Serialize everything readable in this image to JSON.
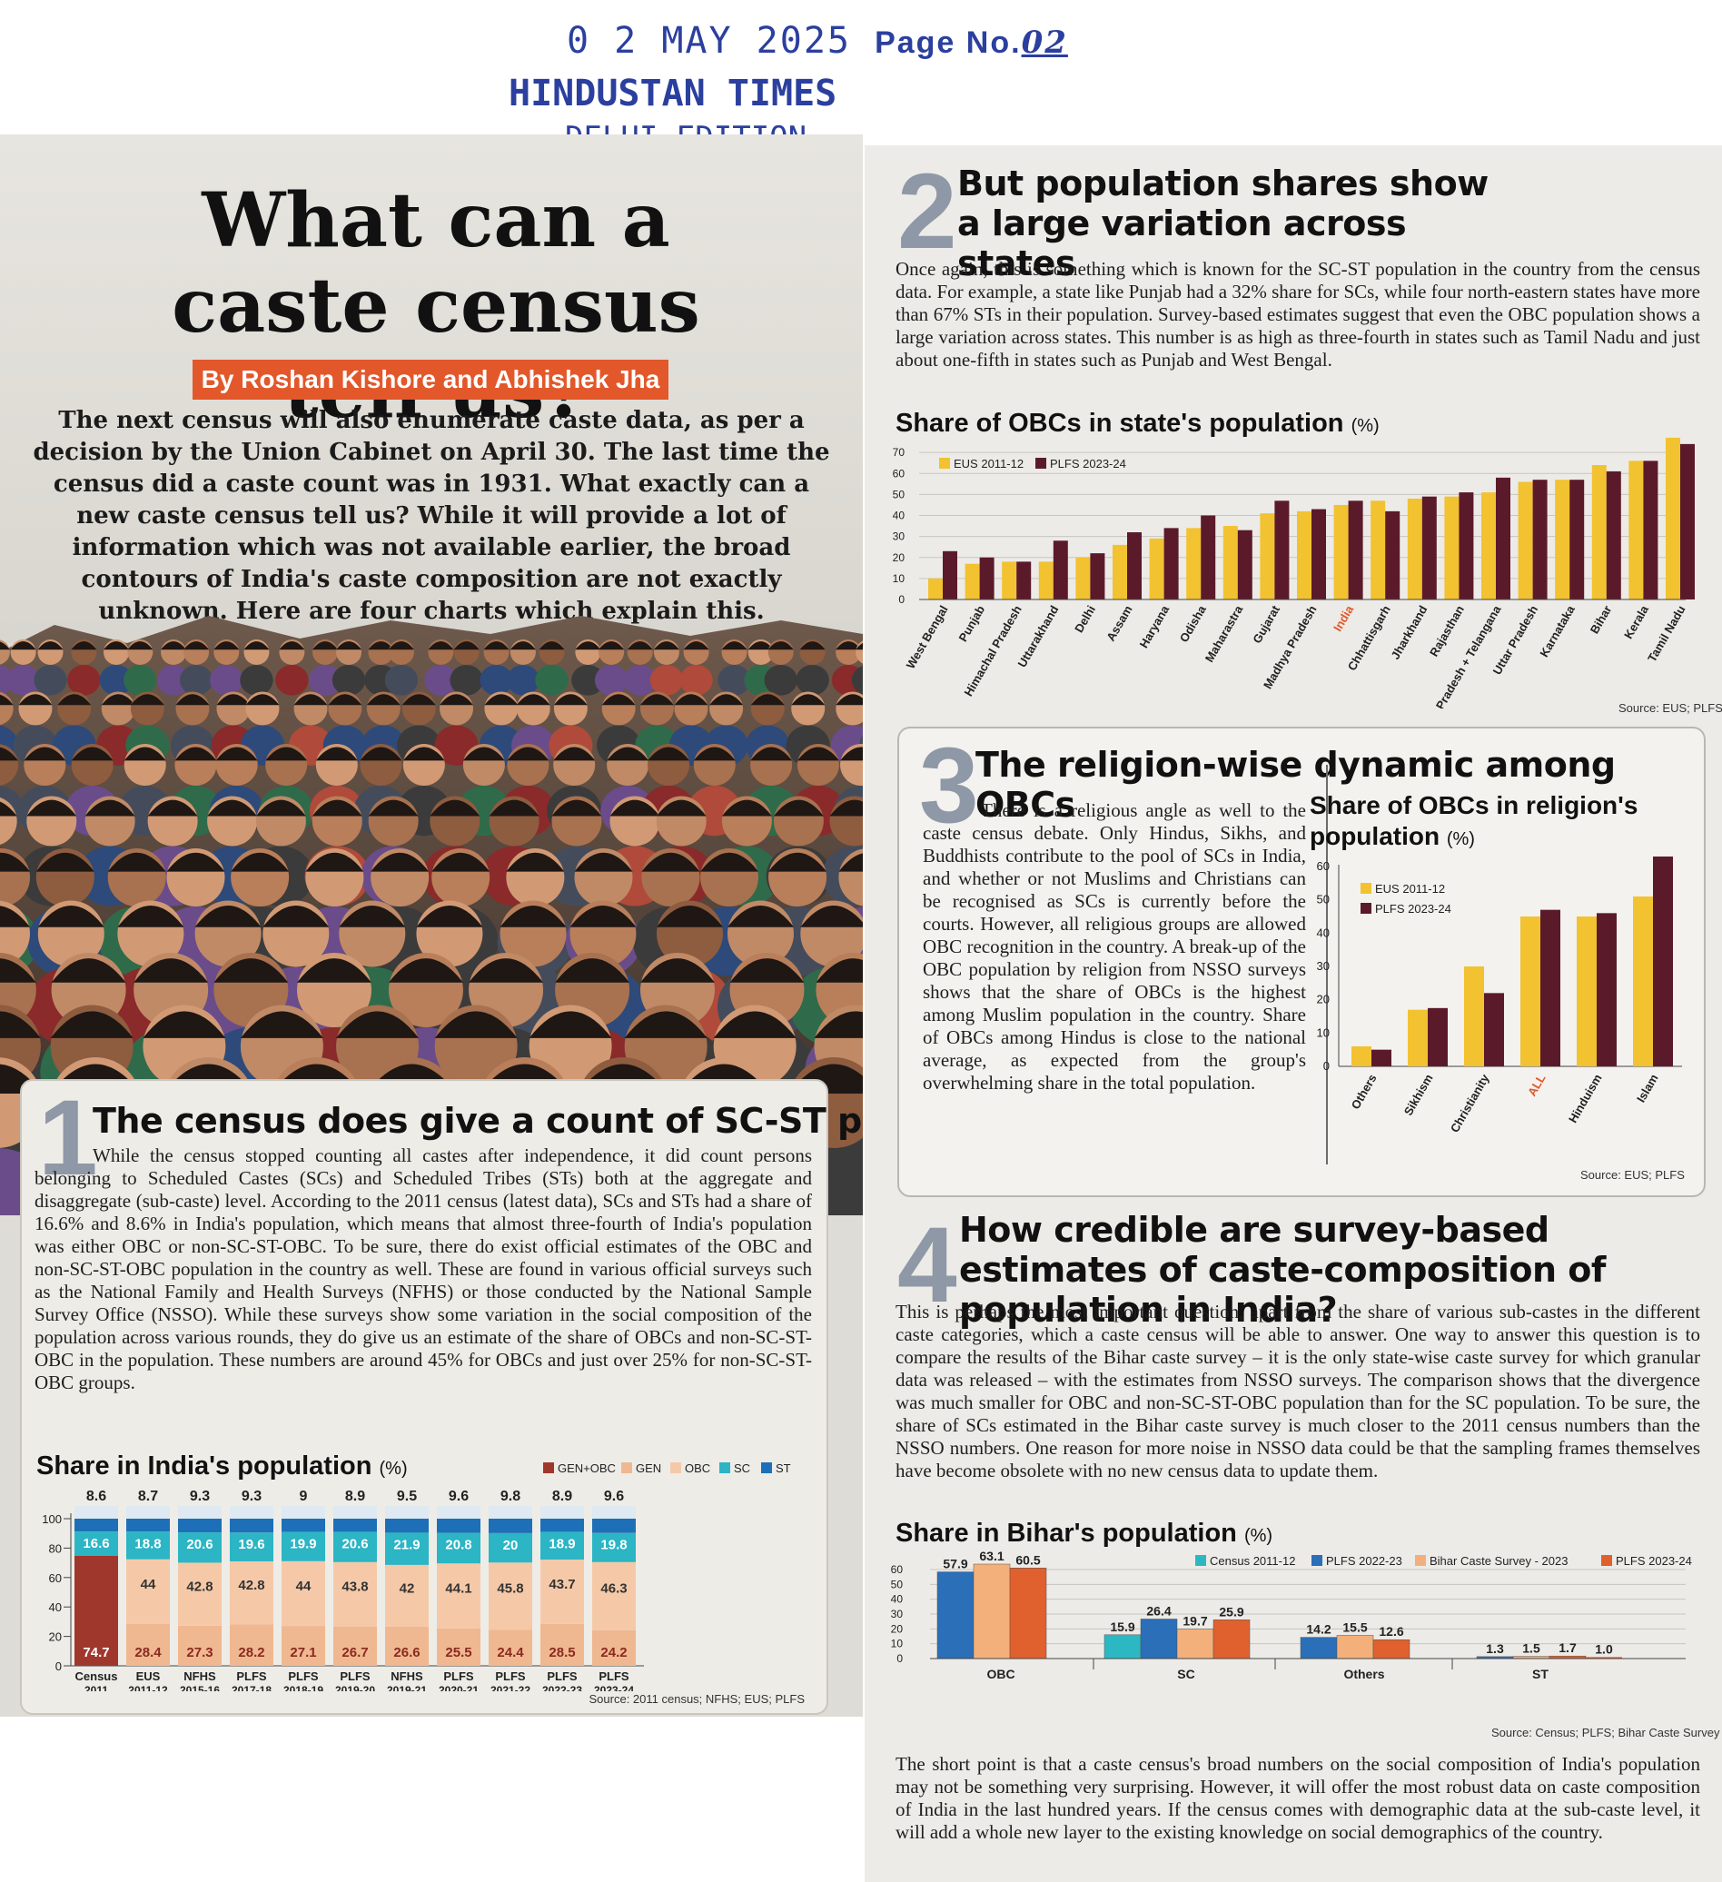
{
  "stamp": {
    "date": "0 2 MAY 2025",
    "page_label": "Page No.",
    "page_number": "02",
    "paper": "HINDUSTAN TIMES",
    "edition": "DELHI EDITION"
  },
  "article": {
    "headline": "What can a caste census tell us?",
    "byline": "By Roshan Kishore and Abhishek Jha",
    "intro": "The next census will also enumerate caste data, as per a decision by the Union Cabinet on April 30. The last time the census did a caste count was in 1931. What exactly can a new caste census tell us? While it will provide a lot of information which was not available earlier, the broad contours of India's caste composition are not exactly unknown. Here are four charts which explain this."
  },
  "sections": {
    "s1": {
      "number": "1",
      "title": "The census does give a count of SC-ST population",
      "body": "While the census stopped counting all castes after independence, it did count persons belonging to Scheduled Castes (SCs) and Scheduled Tribes (STs) both at the aggregate and disaggregate (sub-caste) level. According to the 2011 census (latest data), SCs and STs had a share of 16.6% and 8.6% in India's population, which means that almost three-fourth of India's population was either OBC or non-SC-ST-OBC. To be sure, there do exist official estimates of the OBC and non-SC-ST-OBC population in the country as well. These are found in various official surveys such as the National Family and Health Surveys (NFHS) or those conducted by the National Sample Survey Office (NSSO). While these surveys show some variation in the social composition of the population across various rounds, they do give us an estimate of the share of OBCs and non-SC-ST-OBC in the population. These numbers are around 45% for OBCs and just over 25% for non-SC-ST-OBC groups.",
      "chart_title": "Share in India's population",
      "chart_unit": "(%)",
      "source": "Source: 2011 census; NFHS; EUS; PLFS"
    },
    "s2": {
      "number": "2",
      "title": "But population shares show a large variation across states",
      "body": "Once again, this is something which is known for the SC-ST population in the country from the census data. For example, a state like Punjab had a 32% share for SCs, while four north-eastern states have more than 67% STs in their population. Survey-based estimates suggest that even the OBC population shows a large variation across states. This number is as high as three-fourth in states such as Tamil Nadu and just about one-fifth in states such as Punjab and West Bengal.",
      "chart_title": "Share of OBCs in state's population",
      "chart_unit": "(%)",
      "source": "Source: EUS; PLFS"
    },
    "s3": {
      "number": "3",
      "title": "The religion-wise dynamic among OBCs",
      "body": "There is a religious angle as well to the caste census debate. Only Hindus, Sikhs, and Buddhists contribute to the pool of SCs in India, and whether or not Muslims and Christians can be recognised as SCs is currently before the courts. However, all religious groups are allowed OBC recognition in the country. A break-up of the OBC population by religion from NSSO surveys shows that the share of OBCs is the highest among Muslim population in the country. Share of OBCs among Hindus is close to the national average, as expected from the group's overwhelming share in the total population.",
      "chart_title_line1": "Share of OBCs in religion's",
      "chart_title_line2": "population",
      "chart_unit": "(%)",
      "source": "Source: EUS; PLFS"
    },
    "s4": {
      "number": "4",
      "title": "How credible are survey-based estimates of caste-composition of population in India?",
      "body": "This is perhaps the most important question, apart from the share of various sub-castes in the different caste categories, which a caste census will be able to answer. One way to answer this question is to compare the results of the Bihar caste survey – it is the only state-wise caste survey for which granular data was released – with the estimates from NSSO surveys. The comparison shows that the divergence was much smaller for OBC and non-SC-ST-OBC population than for the SC population. To be sure, the share of SCs estimated in the Bihar caste survey is much closer to the 2011 census numbers than the NSSO numbers. One reason for more noise in NSSO data could be that the sampling frames themselves have become obsolete with no new census data to update them.",
      "chart_title": "Share in Bihar's population",
      "chart_unit": "(%)",
      "source": "Source: Census; PLFS; Bihar Caste Survey",
      "closing": "The short point is that a caste census's broad numbers on the social composition of India's population may not be something very surprising. However, it will offer the most robust data on caste composition of India in the last hundred years. If the census comes with demographic data at the sub-caste level, it will add a whole new layer to the existing knowledge on social demographics of the country."
    }
  },
  "colors": {
    "stamp_blue": "#2b3f9e",
    "byline_orange": "#e2582a",
    "gen_obc": "#a0372c",
    "gen": "#f0b890",
    "obc": "#f5c9a8",
    "sc": "#2cb5c4",
    "st": "#1d70b8",
    "eus": "#f2c230",
    "plfs": "#5b1a2a",
    "census_teal": "#2cb8c2",
    "plfs2223_blue": "#2a6fb7",
    "bcs_peach": "#f4b07a",
    "plfs2324_orange": "#e0602e"
  },
  "chart_data": [
    {
      "id": "india_population",
      "type": "bar",
      "stacked": true,
      "title": "Share in India's population (%)",
      "categories": [
        "Census 2011",
        "EUS 2011-12",
        "NFHS 2015-16",
        "PLFS 2017-18",
        "PLFS 2018-19",
        "PLFS 2019-20",
        "NFHS 2019-21",
        "PLFS 2020-21",
        "PLFS 2021-22",
        "PLFS 2022-23",
        "PLFS 2023-24"
      ],
      "category_line1": [
        "Census",
        "EUS",
        "NFHS",
        "PLFS",
        "PLFS",
        "PLFS",
        "NFHS",
        "PLFS",
        "PLFS",
        "PLFS",
        "PLFS"
      ],
      "category_line2": [
        "2011",
        "2011-12",
        "2015-16",
        "2017-18",
        "2018-19",
        "2019-20",
        "2019-21",
        "2020-21",
        "2021-22",
        "2022-23",
        "2023-24"
      ],
      "series": [
        {
          "name": "GEN+OBC",
          "values": [
            74.7,
            null,
            null,
            null,
            null,
            null,
            null,
            null,
            null,
            null,
            null
          ]
        },
        {
          "name": "GEN",
          "values": [
            null,
            28.4,
            27.3,
            28.2,
            27.1,
            26.7,
            26.6,
            25.5,
            24.4,
            28.5,
            24.2
          ]
        },
        {
          "name": "OBC",
          "values": [
            null,
            44,
            42.8,
            42.8,
            44,
            43.8,
            42,
            44.1,
            45.8,
            43.7,
            46.3
          ]
        },
        {
          "name": "SC",
          "values": [
            16.6,
            18.8,
            20.6,
            19.6,
            19.9,
            20.6,
            21.9,
            20.8,
            20,
            18.9,
            19.8
          ]
        },
        {
          "name": "ST",
          "values": [
            8.6,
            8.7,
            9.3,
            9.3,
            9.0,
            8.9,
            9.5,
            9.6,
            9.8,
            8.9,
            9.6
          ]
        }
      ],
      "legend": [
        "GEN+OBC",
        "GEN",
        "OBC",
        "SC",
        "ST"
      ],
      "yticks": [
        0,
        20,
        40,
        60,
        80,
        100
      ],
      "ylim": [
        0,
        100
      ]
    },
    {
      "id": "obc_by_state",
      "type": "bar",
      "title": "Share of OBCs in state's population (%)",
      "categories": [
        "West Bengal",
        "Punjab",
        "Himachal Pradesh",
        "Uttarakhand",
        "Delhi",
        "Assam",
        "Haryana",
        "Odisha",
        "Maharastra",
        "Gujarat",
        "Madhya Pradesh",
        "India",
        "Chhattisgarh",
        "Jharkhand",
        "Rajasthan",
        "Andhra Pradesh + Telangana",
        "Uttar Pradesh",
        "Karnataka",
        "Bihar",
        "Kerala",
        "Tamil Nadu"
      ],
      "series": [
        {
          "name": "EUS 2011-12",
          "values": [
            10,
            17,
            18,
            18,
            20,
            26,
            29,
            34,
            35,
            41,
            42,
            45,
            47,
            48,
            49,
            51,
            56,
            57,
            64,
            66,
            77
          ]
        },
        {
          "name": "PLFS 2023-24",
          "values": [
            23,
            20,
            18,
            28,
            22,
            32,
            34,
            40,
            33,
            47,
            43,
            47,
            42,
            49,
            51,
            58,
            57,
            57,
            61,
            66,
            74
          ]
        }
      ],
      "highlight_category": "India",
      "yticks": [
        0,
        10,
        20,
        30,
        40,
        50,
        60,
        70
      ],
      "ylim": [
        0,
        80
      ]
    },
    {
      "id": "obc_by_religion",
      "type": "bar",
      "title": "Share of OBCs in religion's population (%)",
      "categories": [
        "Others",
        "Sikhism",
        "Christianity",
        "ALL",
        "Hinduism",
        "Islam"
      ],
      "series": [
        {
          "name": "EUS 2011-12",
          "values": [
            6,
            17,
            30,
            45,
            45,
            51
          ]
        },
        {
          "name": "PLFS 2023-24",
          "values": [
            5,
            17.5,
            22,
            47,
            46,
            63
          ]
        }
      ],
      "highlight_category": "ALL",
      "yticks": [
        0,
        10,
        20,
        30,
        40,
        50,
        60
      ],
      "ylim": [
        0,
        66
      ]
    },
    {
      "id": "bihar_population",
      "type": "bar",
      "title": "Share in Bihar's population (%)",
      "categories": [
        "OBC",
        "SC",
        "Others",
        "ST"
      ],
      "series": [
        {
          "name": "Census 2011-12",
          "values": [
            null,
            15.9,
            null,
            null
          ]
        },
        {
          "name": "PLFS 2022-23",
          "values": [
            57.9,
            26.4,
            14.2,
            1.3
          ]
        },
        {
          "name": "Bihar Caste Survey - 2023",
          "values": [
            63.1,
            19.7,
            15.5,
            1.5
          ]
        },
        {
          "name": "PLFS 2023-24",
          "values": [
            60.5,
            25.9,
            12.6,
            1.7
          ]
        }
      ],
      "extra_label_st": "1.0",
      "yticks": [
        0,
        10,
        20,
        30,
        40,
        50,
        60
      ],
      "ylim": [
        0,
        65
      ]
    }
  ]
}
